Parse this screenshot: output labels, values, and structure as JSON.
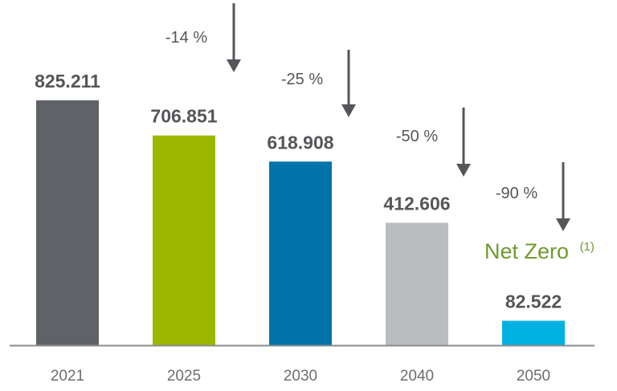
{
  "chart_data": {
    "type": "bar",
    "categories": [
      "2021",
      "2025",
      "2030",
      "2040",
      "2050"
    ],
    "values": [
      825.211,
      706.851,
      618.908,
      412.606,
      82.522
    ],
    "value_labels": [
      "825.211",
      "706.851",
      "618.908",
      "412.606",
      "82.522"
    ],
    "colors": [
      "#5f6266",
      "#9cb700",
      "#0073aa",
      "#bbbcbe",
      "#00b0e0"
    ],
    "reductions": [
      "-14 %",
      "-25 %",
      "-50 %",
      "-90 %"
    ],
    "annotation": {
      "text": "Net Zero",
      "superscript": "(1)",
      "color": "#6e9b2c"
    },
    "title": "",
    "xlabel": "",
    "ylabel": "",
    "ylim": [
      0,
      900
    ],
    "grid": false,
    "legend": "none",
    "axis_color": "#8a8b8d",
    "arrow_color": "#555659"
  }
}
